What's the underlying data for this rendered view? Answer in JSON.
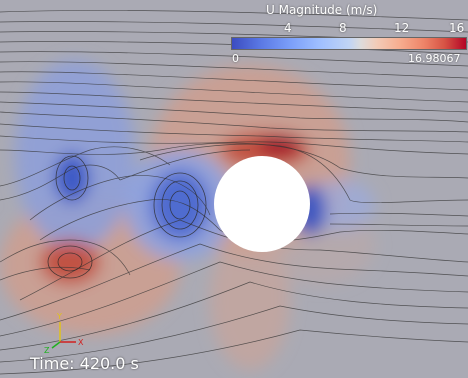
{
  "colorbar": {
    "title": "U Magnitude (m/s)",
    "ticks": [
      "4",
      "8",
      "12",
      "16"
    ],
    "min_label": "0",
    "max_label": "16.98067",
    "colormap": [
      "#3b4cc0",
      "#7b9ff9",
      "#dddcdc",
      "#f7ac8e",
      "#b40426"
    ]
  },
  "time_label": "Time: 420.0 s",
  "orientation_axes": {
    "x": "X",
    "y": "Y",
    "z": "Z"
  },
  "colors": {
    "background": "#a9a9b0",
    "cylinder": "#ffffff",
    "streamline": "#333333"
  }
}
